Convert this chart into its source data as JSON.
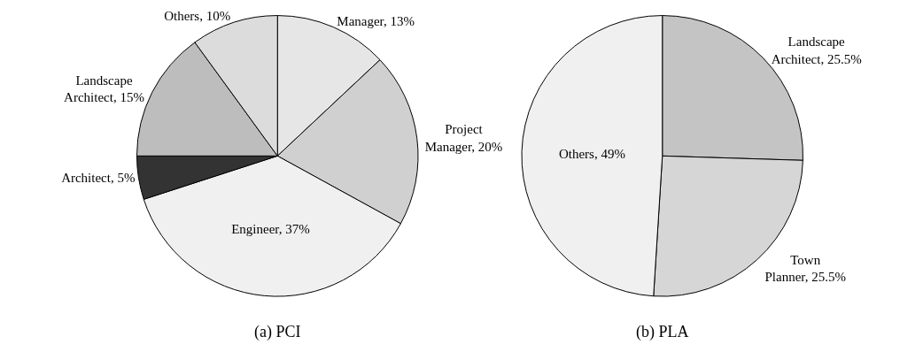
{
  "chart_data": [
    {
      "type": "pie",
      "title": "(a) PCI",
      "categories": [
        "Manager",
        "Project Manager",
        "Engineer",
        "Architect",
        "Landscape Architect",
        "Others"
      ],
      "values": [
        13,
        20,
        37,
        5,
        15,
        10
      ],
      "value_labels": [
        "13%",
        "20%",
        "37%",
        "5%",
        "15%",
        "10%"
      ],
      "colors": [
        "#e6e6e6",
        "#d0d0d0",
        "#f0f0f0",
        "#333333",
        "#bdbdbd",
        "#dcdcdc"
      ]
    },
    {
      "type": "pie",
      "title": "(b) PLA",
      "categories": [
        "Landscape Architect",
        "Town Planner",
        "Others"
      ],
      "values": [
        25.5,
        25.5,
        49
      ],
      "value_labels": [
        "25.5%",
        "25.5%",
        "49%"
      ],
      "colors": [
        "#c4c4c4",
        "#d6d6d6",
        "#f0f0f0"
      ]
    }
  ]
}
